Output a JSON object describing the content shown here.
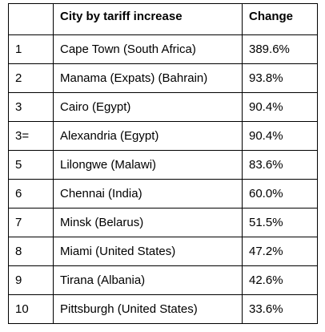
{
  "table": {
    "headers": [
      "",
      "City by tariff increase",
      "Change"
    ],
    "rows": [
      {
        "rank": "1",
        "city": "Cape Town (South Africa)",
        "change": "389.6%"
      },
      {
        "rank": "2",
        "city": "Manama (Expats) (Bahrain)",
        "change": "93.8%"
      },
      {
        "rank": "3",
        "city": "Cairo (Egypt)",
        "change": "90.4%"
      },
      {
        "rank": "3=",
        "city": "Alexandria (Egypt)",
        "change": "90.4%"
      },
      {
        "rank": "5",
        "city": "Lilongwe (Malawi)",
        "change": "83.6%"
      },
      {
        "rank": "6",
        "city": "Chennai (India)",
        "change": "60.0%"
      },
      {
        "rank": "7",
        "city": "Minsk (Belarus)",
        "change": "51.5%"
      },
      {
        "rank": "8",
        "city": "Miami (United States)",
        "change": "47.2%"
      },
      {
        "rank": "9",
        "city": "Tirana (Albania)",
        "change": "42.6%"
      },
      {
        "rank": "10",
        "city": "Pittsburgh (United States)",
        "change": "33.6%"
      }
    ]
  }
}
